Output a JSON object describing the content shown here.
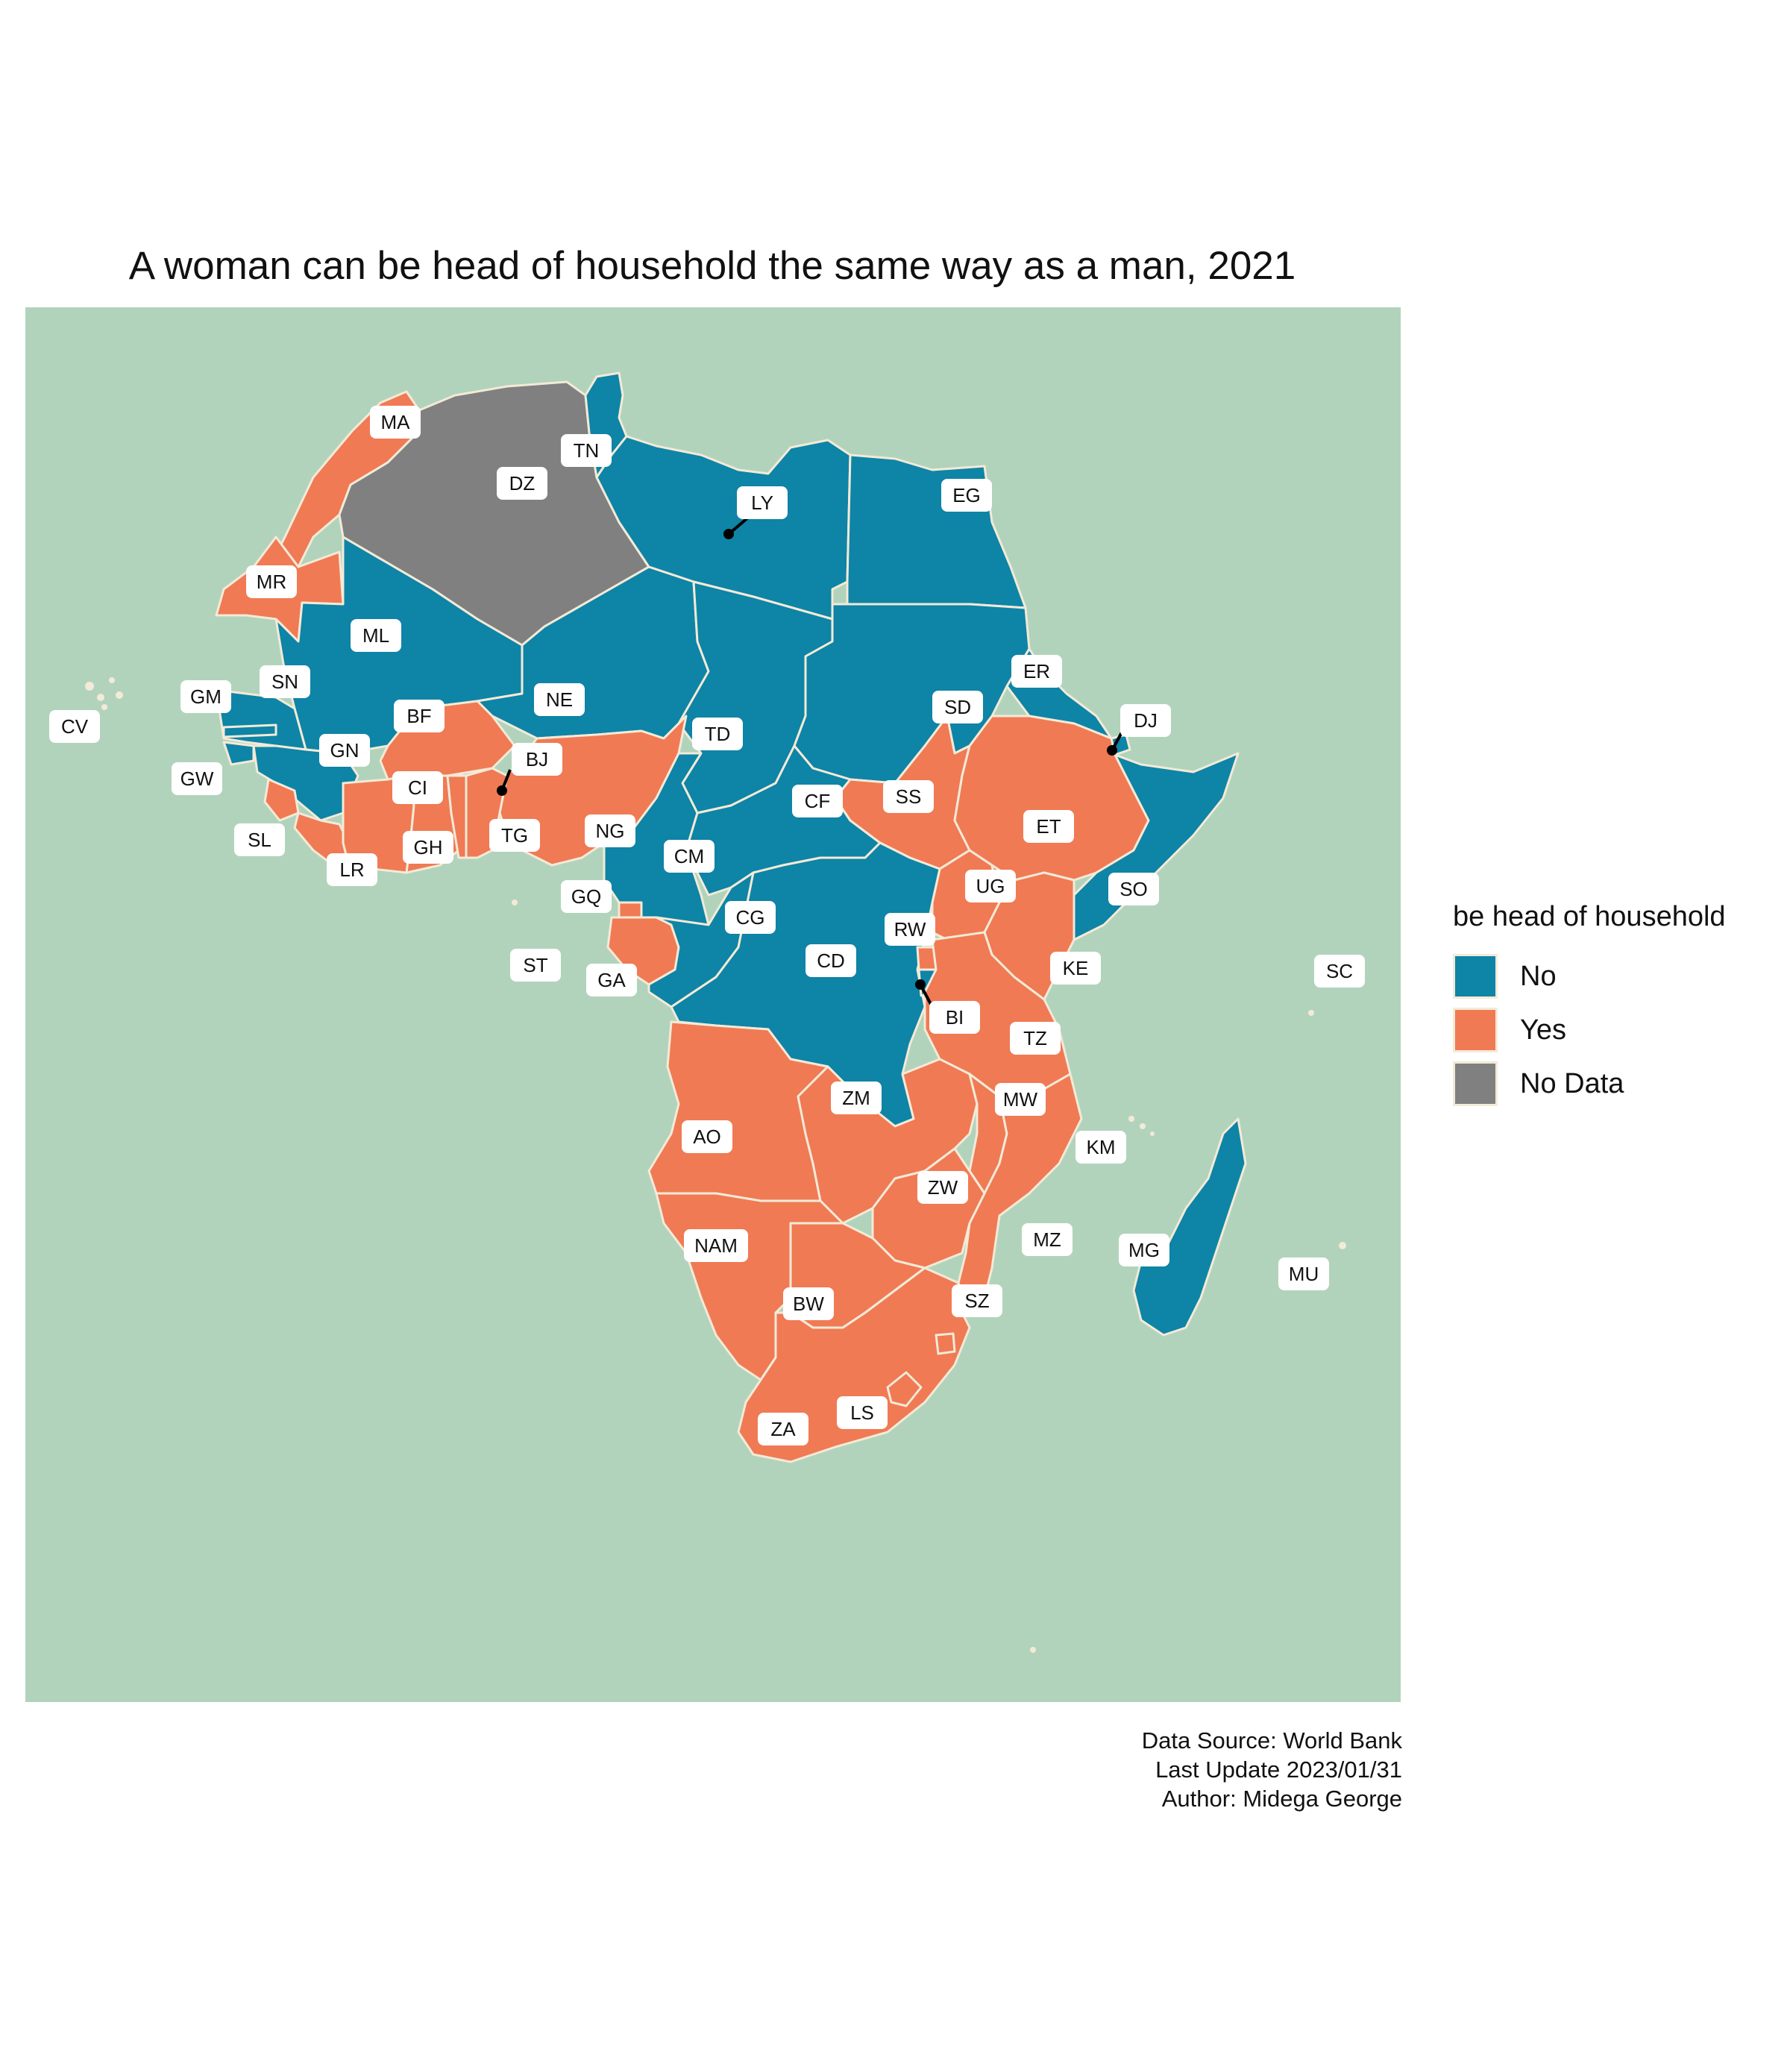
{
  "title": "A woman can be head of household the same way as a man, 2021",
  "legend": {
    "title": "be head of household",
    "items": [
      {
        "label": "No",
        "color": "#0e84a6"
      },
      {
        "label": "Yes",
        "color": "#f07a54"
      },
      {
        "label": "No Data",
        "color": "#808080"
      }
    ]
  },
  "caption": {
    "source": "Data Source: World Bank",
    "updated": "Last Update 2023/01/31",
    "author": "Midega George"
  },
  "map": {
    "ocean_color": "#b2d3bb",
    "border_color": "#f3ead7",
    "countries": [
      {
        "code": "MA",
        "status": "Yes"
      },
      {
        "code": "DZ",
        "status": "No Data"
      },
      {
        "code": "TN",
        "status": "No"
      },
      {
        "code": "LY",
        "status": "No"
      },
      {
        "code": "EG",
        "status": "No"
      },
      {
        "code": "MR",
        "status": "Yes"
      },
      {
        "code": "ML",
        "status": "No"
      },
      {
        "code": "NE",
        "status": "No"
      },
      {
        "code": "TD",
        "status": "No"
      },
      {
        "code": "SD",
        "status": "No"
      },
      {
        "code": "ER",
        "status": "No"
      },
      {
        "code": "DJ",
        "status": "No"
      },
      {
        "code": "SN",
        "status": "No"
      },
      {
        "code": "GM",
        "status": "No"
      },
      {
        "code": "GW",
        "status": "No"
      },
      {
        "code": "GN",
        "status": "No"
      },
      {
        "code": "SL",
        "status": "Yes"
      },
      {
        "code": "LR",
        "status": "Yes"
      },
      {
        "code": "CI",
        "status": "Yes"
      },
      {
        "code": "BF",
        "status": "Yes"
      },
      {
        "code": "GH",
        "status": "Yes"
      },
      {
        "code": "TG",
        "status": "Yes"
      },
      {
        "code": "BJ",
        "status": "Yes"
      },
      {
        "code": "NG",
        "status": "Yes"
      },
      {
        "code": "CM",
        "status": "No"
      },
      {
        "code": "CF",
        "status": "No"
      },
      {
        "code": "SS",
        "status": "Yes"
      },
      {
        "code": "ET",
        "status": "Yes"
      },
      {
        "code": "SO",
        "status": "No"
      },
      {
        "code": "UG",
        "status": "Yes"
      },
      {
        "code": "KE",
        "status": "Yes"
      },
      {
        "code": "GQ",
        "status": "Yes"
      },
      {
        "code": "GA",
        "status": "Yes"
      },
      {
        "code": "CG",
        "status": "No"
      },
      {
        "code": "CD",
        "status": "No"
      },
      {
        "code": "RW",
        "status": "Yes"
      },
      {
        "code": "BI",
        "status": "No"
      },
      {
        "code": "TZ",
        "status": "Yes"
      },
      {
        "code": "AO",
        "status": "Yes"
      },
      {
        "code": "ZM",
        "status": "Yes"
      },
      {
        "code": "MW",
        "status": "Yes"
      },
      {
        "code": "MZ",
        "status": "Yes"
      },
      {
        "code": "ZW",
        "status": "Yes"
      },
      {
        "code": "NAM",
        "status": "Yes"
      },
      {
        "code": "BW",
        "status": "Yes"
      },
      {
        "code": "ZA",
        "status": "Yes"
      },
      {
        "code": "LS",
        "status": "Yes"
      },
      {
        "code": "SZ",
        "status": "Yes"
      },
      {
        "code": "MG",
        "status": "No"
      },
      {
        "code": "KM",
        "status": "Yes"
      },
      {
        "code": "MU",
        "status": "Yes"
      },
      {
        "code": "SC",
        "status": "Yes"
      },
      {
        "code": "CV",
        "status": "Yes"
      },
      {
        "code": "ST",
        "status": "Yes"
      }
    ]
  }
}
